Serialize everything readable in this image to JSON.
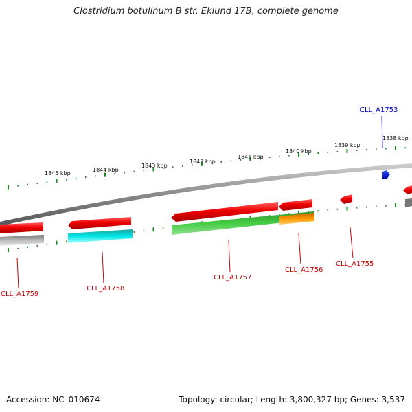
{
  "title": "Clostridium botulinum B str. Eklund 17B, complete genome",
  "footer": {
    "accession": "Accession: NC_010674",
    "topology": "Topology: circular; Length: 3,800,327 bp; Genes: 3,537"
  },
  "scale_labels": [
    "1845 kbp",
    "1844 kbp",
    "1843 kbp",
    "1842 kbp",
    "1841 kbp",
    "1840 kbp",
    "1839 kbp",
    "1838 kbp"
  ],
  "gene_labels": [
    {
      "name": "CLL_A1753",
      "color": "#0000cc"
    },
    {
      "name": "CLL_A1755",
      "color": "#cc0000"
    },
    {
      "name": "CLL_A1756",
      "color": "#cc0000"
    },
    {
      "name": "CLL_A1757",
      "color": "#cc0000"
    },
    {
      "name": "CLL_A1758",
      "color": "#cc0000"
    },
    {
      "name": "CLL_A1759",
      "color": "#cc0000"
    }
  ],
  "colors": {
    "cds": "#e00000",
    "highlight_gene": "#0000ee",
    "green_feature": "#33bb33",
    "cyan_feature": "#00dddd",
    "orange_feature": "#ff8800",
    "gray_feature": "#aaaaaa",
    "backbone": "#8a8a8a",
    "ticks": "#1a8a1a"
  }
}
